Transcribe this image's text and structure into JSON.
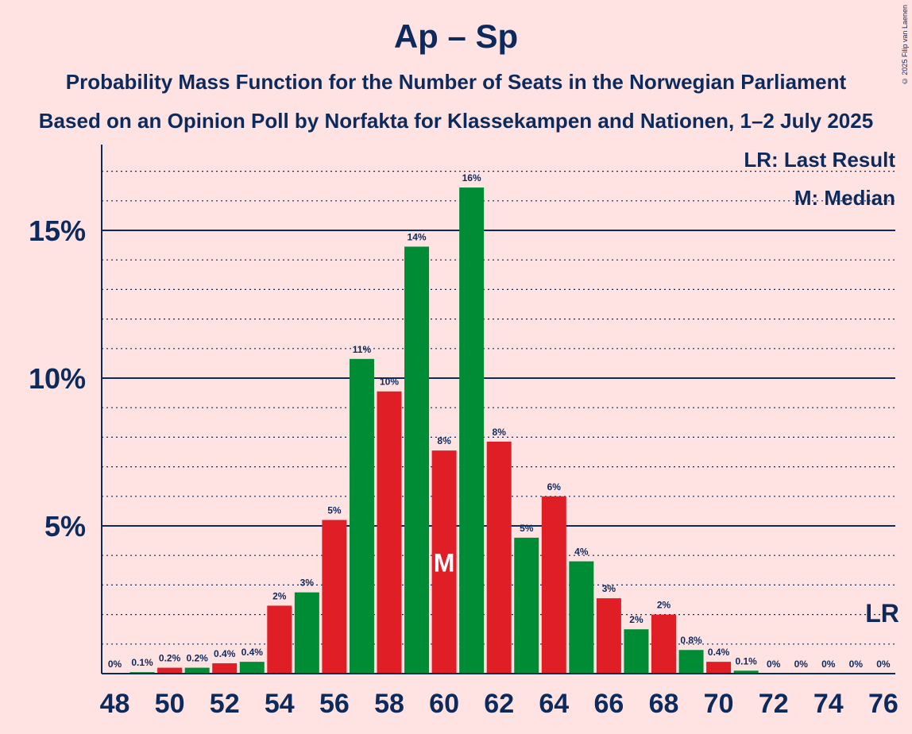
{
  "title": "Ap – Sp",
  "subtitle1": "Probability Mass Function for the Number of Seats in the Norwegian Parliament",
  "subtitle2": "Based on an Opinion Poll by Norfakta for Klassekampen and Nationen, 1–2 July 2025",
  "copyright": "© 2025 Filip van Laenen",
  "legend": {
    "last_result": "LR: Last Result",
    "median": "M: Median"
  },
  "markers": {
    "median_label": "M",
    "last_result_label": "LR"
  },
  "colors": {
    "background": "#ffe3e3",
    "green": "#008c35",
    "red": "#e01e26",
    "navy": "#0d2a5c"
  },
  "chart_data": {
    "type": "bar",
    "x": [
      48,
      49,
      50,
      51,
      52,
      53,
      54,
      55,
      56,
      57,
      58,
      59,
      60,
      61,
      62,
      63,
      64,
      65,
      66,
      67,
      68,
      69,
      70,
      71,
      72,
      73,
      74,
      75,
      76
    ],
    "values": [
      0,
      0.05,
      0.2,
      0.2,
      0.35,
      0.4,
      2.3,
      2.75,
      5.2,
      10.65,
      9.55,
      14.45,
      7.55,
      16.45,
      7.85,
      4.6,
      6.0,
      3.8,
      2.55,
      1.5,
      2.0,
      0.8,
      0.4,
      0.1,
      0,
      0,
      0,
      0,
      0
    ],
    "labels": [
      "0%",
      "0.1%",
      "0.2%",
      "0.2%",
      "0.4%",
      "0.4%",
      "2%",
      "3%",
      "5%",
      "11%",
      "10%",
      "14%",
      "8%",
      "16%",
      "8%",
      "5%",
      "6%",
      "4%",
      "3%",
      "2%",
      "2%",
      "0.8%",
      "0.4%",
      "0.1%",
      "0%",
      "0%",
      "0%",
      "0%",
      "0%"
    ],
    "colors": [
      "green",
      "green",
      "red",
      "green",
      "red",
      "green",
      "red",
      "green",
      "red",
      "green",
      "red",
      "green",
      "red",
      "green",
      "red",
      "green",
      "red",
      "green",
      "red",
      "green",
      "red",
      "green",
      "red",
      "green",
      "red",
      "green",
      "red",
      "green",
      "red"
    ],
    "x_tick_labels": [
      "48",
      "50",
      "52",
      "54",
      "56",
      "58",
      "60",
      "62",
      "64",
      "66",
      "68",
      "70",
      "72",
      "74",
      "76"
    ],
    "y_tick_values": [
      5,
      10,
      15
    ],
    "y_tick_labels": [
      "5%",
      "10%",
      "15%"
    ],
    "ylim": [
      0,
      17.9
    ],
    "median_seat": 60,
    "last_result_seat": 76,
    "grid": "dotted minor lines every 1%, solid major lines at 5%, 10%, 15%",
    "legend_position": "top-right"
  }
}
